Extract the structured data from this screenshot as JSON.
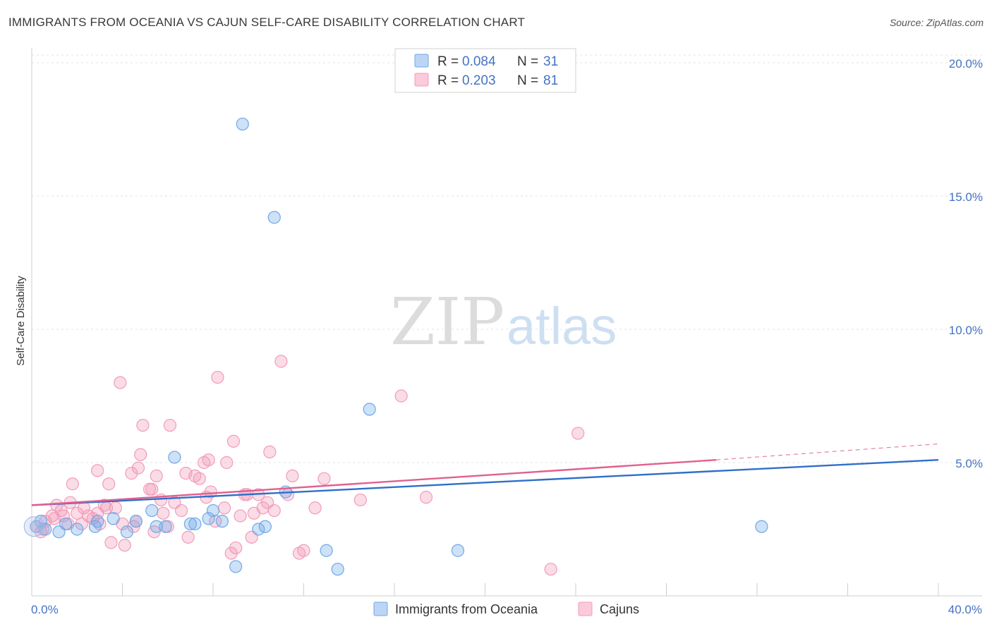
{
  "header": {
    "title": "IMMIGRANTS FROM OCEANIA VS CAJUN SELF-CARE DISABILITY CORRELATION CHART",
    "source": "Source: ZipAtlas.com"
  },
  "watermark": {
    "zip": "ZIP",
    "atlas": "atlas"
  },
  "chart_data": {
    "type": "scatter",
    "ylabel": "Self-Care Disability",
    "xlim": [
      0,
      40
    ],
    "ylim": [
      0,
      20
    ],
    "x_tick_labels": [
      "0.0%",
      "40.0%"
    ],
    "y_ticks": [
      5,
      10,
      15,
      20
    ],
    "y_tick_labels": [
      "5.0%",
      "10.0%",
      "15.0%",
      "20.0%"
    ],
    "grid": true,
    "legend": {
      "placement": "top-center",
      "entries": [
        {
          "r_label": "R =",
          "r_value": "0.084",
          "n_label": "N =",
          "n_value": "31"
        },
        {
          "r_label": "R =",
          "r_value": "0.203",
          "n_label": "N =",
          "n_value": "81"
        }
      ]
    },
    "series": [
      {
        "name": "Immigrants from Oceania",
        "color": "#6fa8e8",
        "line_color": "#2f6fc9",
        "trend": {
          "x0": 0,
          "y0": 3.4,
          "x1": 40,
          "y1": 5.1
        },
        "points": [
          [
            0.2,
            2.6
          ],
          [
            0.6,
            2.5
          ],
          [
            1.5,
            2.7
          ],
          [
            2.0,
            2.5
          ],
          [
            2.9,
            2.8
          ],
          [
            2.8,
            2.6
          ],
          [
            3.6,
            2.9
          ],
          [
            4.2,
            2.4
          ],
          [
            4.6,
            2.8
          ],
          [
            5.3,
            3.2
          ],
          [
            5.5,
            2.6
          ],
          [
            5.9,
            2.6
          ],
          [
            6.3,
            5.2
          ],
          [
            7.0,
            2.7
          ],
          [
            7.2,
            2.7
          ],
          [
            7.8,
            2.9
          ],
          [
            8.0,
            3.2
          ],
          [
            8.4,
            2.8
          ],
          [
            9.3,
            17.7
          ],
          [
            9.0,
            1.1
          ],
          [
            10.0,
            2.5
          ],
          [
            10.3,
            2.6
          ],
          [
            10.7,
            14.2
          ],
          [
            11.2,
            3.9
          ],
          [
            13.0,
            1.7
          ],
          [
            13.5,
            1.0
          ],
          [
            14.9,
            7.0
          ],
          [
            18.8,
            1.7
          ],
          [
            32.2,
            2.6
          ],
          [
            1.2,
            2.4
          ],
          [
            0.4,
            2.8
          ]
        ]
      },
      {
        "name": "Cajuns",
        "color": "#f29bb8",
        "line_color": "#e06090",
        "trend": {
          "x0": 0,
          "y0": 3.4,
          "x1": 30.2,
          "y1": 5.1
        },
        "trend_dashed": {
          "x0": 30.2,
          "y0": 5.1,
          "x1": 40,
          "y1": 5.7
        },
        "points": [
          [
            0.2,
            2.6
          ],
          [
            0.4,
            2.4
          ],
          [
            0.6,
            2.8
          ],
          [
            0.9,
            3.0
          ],
          [
            1.1,
            3.4
          ],
          [
            1.3,
            3.2
          ],
          [
            1.6,
            2.7
          ],
          [
            1.7,
            3.5
          ],
          [
            1.8,
            4.2
          ],
          [
            2.2,
            2.7
          ],
          [
            2.3,
            3.3
          ],
          [
            2.5,
            3.0
          ],
          [
            2.7,
            2.9
          ],
          [
            2.9,
            3.1
          ],
          [
            2.9,
            4.7
          ],
          [
            3.0,
            2.7
          ],
          [
            3.3,
            3.3
          ],
          [
            3.4,
            4.2
          ],
          [
            3.5,
            2.0
          ],
          [
            3.7,
            3.3
          ],
          [
            3.9,
            8.0
          ],
          [
            4.0,
            2.7
          ],
          [
            4.1,
            1.9
          ],
          [
            4.4,
            4.6
          ],
          [
            4.5,
            2.6
          ],
          [
            4.7,
            4.8
          ],
          [
            4.8,
            5.3
          ],
          [
            4.9,
            6.4
          ],
          [
            5.2,
            4.0
          ],
          [
            5.3,
            4.0
          ],
          [
            5.4,
            2.4
          ],
          [
            5.5,
            4.5
          ],
          [
            5.7,
            3.6
          ],
          [
            5.8,
            3.1
          ],
          [
            6.0,
            2.6
          ],
          [
            6.1,
            6.4
          ],
          [
            6.3,
            3.5
          ],
          [
            6.8,
            4.6
          ],
          [
            6.9,
            2.2
          ],
          [
            7.2,
            4.5
          ],
          [
            7.4,
            4.4
          ],
          [
            7.6,
            5.0
          ],
          [
            7.7,
            3.7
          ],
          [
            7.8,
            5.1
          ],
          [
            7.9,
            3.9
          ],
          [
            8.1,
            2.8
          ],
          [
            8.2,
            8.2
          ],
          [
            8.6,
            5.0
          ],
          [
            8.8,
            1.6
          ],
          [
            8.9,
            5.8
          ],
          [
            9.0,
            1.8
          ],
          [
            9.2,
            3.0
          ],
          [
            9.4,
            3.8
          ],
          [
            9.5,
            3.8
          ],
          [
            9.7,
            2.2
          ],
          [
            9.8,
            3.1
          ],
          [
            10.0,
            3.8
          ],
          [
            10.2,
            3.3
          ],
          [
            10.5,
            5.4
          ],
          [
            10.7,
            3.2
          ],
          [
            11.0,
            8.8
          ],
          [
            11.3,
            3.8
          ],
          [
            11.5,
            4.5
          ],
          [
            11.8,
            1.6
          ],
          [
            12.0,
            1.7
          ],
          [
            12.5,
            3.3
          ],
          [
            12.9,
            4.4
          ],
          [
            14.5,
            3.6
          ],
          [
            16.3,
            7.5
          ],
          [
            17.4,
            3.7
          ],
          [
            24.1,
            6.1
          ],
          [
            22.9,
            1.0
          ],
          [
            0.5,
            2.5
          ],
          [
            1.0,
            2.9
          ],
          [
            1.4,
            3.0
          ],
          [
            2.0,
            3.1
          ],
          [
            3.2,
            3.4
          ],
          [
            4.6,
            2.8
          ],
          [
            6.6,
            3.2
          ],
          [
            8.5,
            3.3
          ],
          [
            10.4,
            3.5
          ]
        ]
      }
    ]
  }
}
